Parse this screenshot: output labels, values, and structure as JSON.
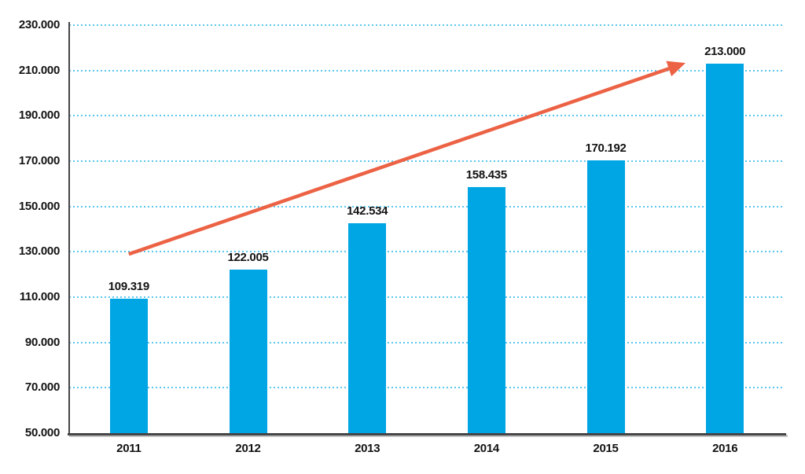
{
  "chart_data": {
    "type": "bar",
    "title": "",
    "xlabel": "",
    "ylabel": "",
    "categories": [
      "2011",
      "2012",
      "2013",
      "2014",
      "2015",
      "2016"
    ],
    "values": [
      109319,
      122005,
      142534,
      158435,
      170192,
      213000
    ],
    "value_labels": [
      "109.319",
      "122.005",
      "142.534",
      "158.435",
      "170.192",
      "213.000"
    ],
    "ylim": [
      50000,
      230000
    ],
    "y_tick_step": 20000,
    "y_ticks": [
      {
        "value": 230000,
        "label": "230.000"
      },
      {
        "value": 210000,
        "label": "210.000"
      },
      {
        "value": 190000,
        "label": "190.000"
      },
      {
        "value": 170000,
        "label": "170.000"
      },
      {
        "value": 150000,
        "label": "150.000"
      },
      {
        "value": 130000,
        "label": "130.000"
      },
      {
        "value": 110000,
        "label": "110.000"
      },
      {
        "value": 90000,
        "label": "90.000"
      },
      {
        "value": 70000,
        "label": "70.000"
      },
      {
        "value": 50000,
        "label": "50.000"
      }
    ],
    "grid": "horizontal dotted",
    "legend": "none",
    "colors": {
      "bar": "#00A5E4",
      "grid": "#5BC6F0",
      "axis": "#454547",
      "axis_shadow": "#C2C2C2",
      "text": "#131313",
      "arrow": "#EC6245"
    },
    "annotations": [
      {
        "type": "trend-arrow",
        "color": "#EC6245",
        "from": {
          "x_slot": 0.5,
          "value": 129000
        },
        "to": {
          "x_slot": 5.13,
          "value": 212600
        }
      }
    ]
  }
}
